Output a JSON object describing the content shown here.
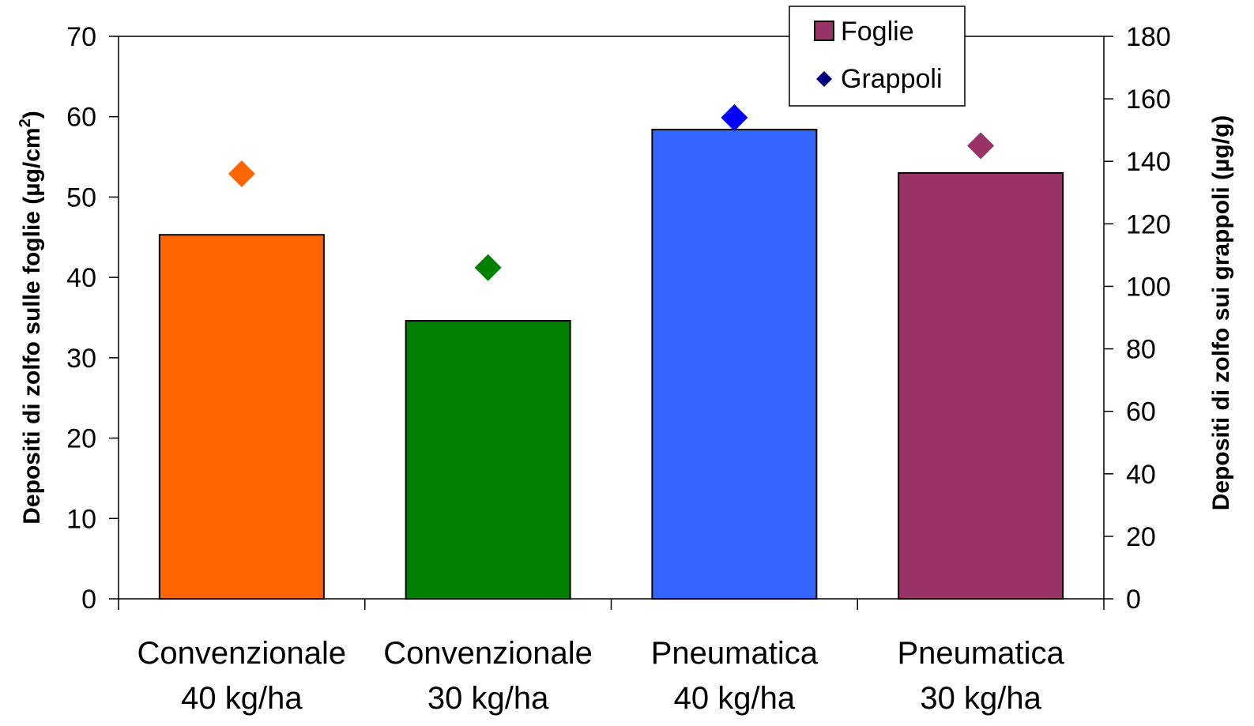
{
  "chart_data": {
    "type": "bar",
    "categories": [
      [
        "Convenzionale",
        "40 kg/ha"
      ],
      [
        "Convenzionale",
        "30 kg/ha"
      ],
      [
        "Pneumatica",
        "40 kg/ha"
      ],
      [
        "Pneumatica",
        "30 kg/ha"
      ]
    ],
    "series": [
      {
        "name": "Foglie",
        "kind": "bar",
        "axis": "left",
        "values": [
          45.3,
          34.6,
          58.4,
          53.0
        ],
        "colors": [
          "#FF6600",
          "#008000",
          "#3366FF",
          "#993366"
        ],
        "legend_color": "#993366"
      },
      {
        "name": "Grappoli",
        "kind": "marker",
        "marker": "diamond",
        "axis": "right",
        "values": [
          136,
          106,
          154,
          145
        ],
        "colors": [
          "#FF6600",
          "#008000",
          "#0000FF",
          "#993366"
        ],
        "legend_color": "#000080"
      }
    ],
    "ylabel_left_main": "Depositi di zolfo sulle foglie (µg/cm",
    "ylabel_left_sup": "2",
    "ylabel_left_end": ")",
    "ylabel_right": "Depositi di zolfo sui grappoli (µg/g)",
    "ylim_left": [
      0,
      70
    ],
    "yticks_left": [
      0,
      10,
      20,
      30,
      40,
      50,
      60,
      70
    ],
    "ylim_right": [
      0,
      180
    ],
    "yticks_right": [
      0,
      20,
      40,
      60,
      80,
      100,
      120,
      140,
      160,
      180
    ],
    "grid": false,
    "legend_position": "top-right"
  }
}
